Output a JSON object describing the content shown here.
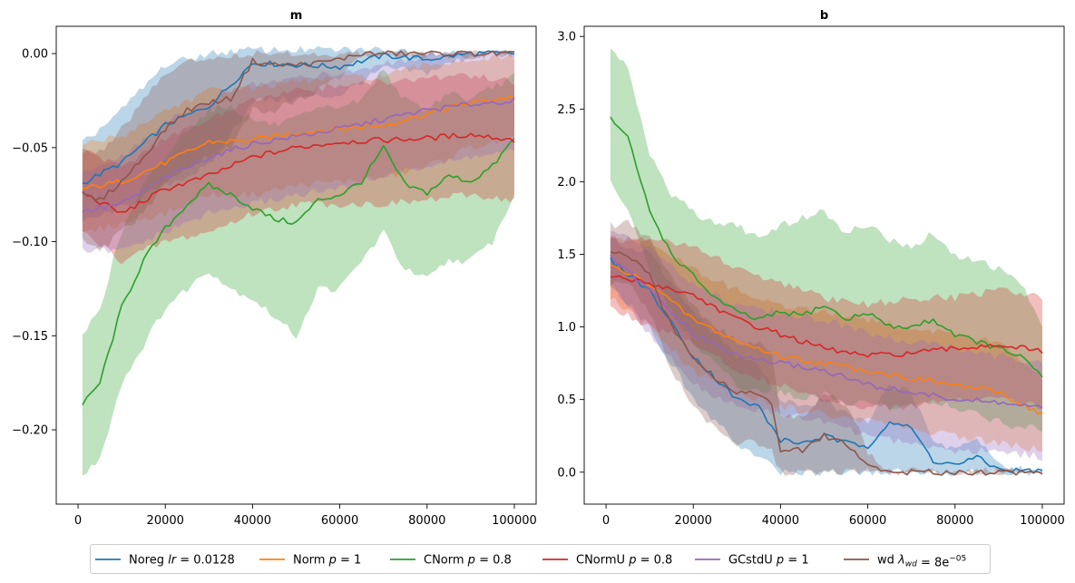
{
  "legend": {
    "placement": "bottom-center",
    "entries": [
      {
        "prefix": "Noreg ",
        "math": "lr",
        "mathSub": "",
        "mathSup": "",
        "suffix": " = 0.0128"
      },
      {
        "prefix": "Norm ",
        "math": "p",
        "mathSub": "",
        "mathSup": "",
        "suffix": " = 1"
      },
      {
        "prefix": "CNorm ",
        "math": "p",
        "mathSub": "",
        "mathSup": "",
        "suffix": " = 0.8"
      },
      {
        "prefix": "CNormU ",
        "math": "p",
        "mathSub": "",
        "mathSup": "",
        "suffix": " = 0.8"
      },
      {
        "prefix": "GCstdU ",
        "math": "p",
        "mathSub": "",
        "mathSup": "",
        "suffix": " = 1"
      },
      {
        "prefix": "wd ",
        "math": "λ",
        "mathSub": "wd",
        "mathSup": "−05",
        "suffix": " = 8e"
      }
    ]
  },
  "colors": [
    "#1f77b4",
    "#ff7f0e",
    "#2ca02c",
    "#d62728",
    "#9467bd",
    "#8c564b"
  ],
  "chart_data": [
    {
      "type": "line",
      "title": "m",
      "xlabel": "",
      "ylabel": "",
      "grid": false,
      "xlim": [
        -5000,
        105000
      ],
      "ylim": [
        -0.2395,
        0.0145
      ],
      "xticks": [
        0,
        20000,
        40000,
        60000,
        80000,
        100000
      ],
      "xtick_labels": [
        "0",
        "20000",
        "40000",
        "60000",
        "80000",
        "100000"
      ],
      "yticks": [
        -0.2,
        -0.15,
        -0.1,
        -0.05,
        0.0
      ],
      "ytick_labels": [
        "−0.20",
        "−0.15",
        "−0.10",
        "−0.05",
        "0.00"
      ],
      "series": [
        {
          "name": "Noreg lr = 0.0128",
          "x": [
            1000,
            10000,
            20000,
            30000,
            40000,
            50000,
            60000,
            70000,
            80000,
            90000,
            100000
          ],
          "mean": [
            -0.069,
            -0.058,
            -0.038,
            -0.028,
            -0.005,
            -0.006,
            -0.007,
            -0.001,
            -0.003,
            0.0,
            0.0
          ],
          "lower": [
            -0.09,
            -0.082,
            -0.07,
            -0.06,
            -0.025,
            -0.024,
            -0.022,
            -0.008,
            -0.01,
            -0.001,
            -0.001
          ],
          "upper": [
            -0.048,
            -0.03,
            -0.006,
            0.0,
            0.002,
            0.002,
            0.002,
            0.002,
            0.001,
            0.0005,
            0.0005
          ]
        },
        {
          "name": "Norm p = 1",
          "x": [
            1000,
            10000,
            20000,
            30000,
            40000,
            50000,
            60000,
            70000,
            80000,
            90000,
            100000
          ],
          "mean": [
            -0.072,
            -0.068,
            -0.058,
            -0.047,
            -0.046,
            -0.042,
            -0.04,
            -0.038,
            -0.032,
            -0.026,
            -0.023
          ],
          "lower": [
            -0.096,
            -0.09,
            -0.085,
            -0.075,
            -0.075,
            -0.07,
            -0.068,
            -0.066,
            -0.06,
            -0.05,
            -0.045
          ],
          "upper": [
            -0.048,
            -0.044,
            -0.03,
            -0.02,
            -0.018,
            -0.015,
            -0.013,
            -0.012,
            -0.006,
            -0.003,
            -0.002
          ]
        },
        {
          "name": "CNorm p = 0.8",
          "x": [
            1000,
            5000,
            10000,
            15000,
            20000,
            25000,
            30000,
            35000,
            40000,
            45000,
            50000,
            55000,
            60000,
            65000,
            70000,
            75000,
            80000,
            85000,
            90000,
            95000,
            100000
          ],
          "mean": [
            -0.187,
            -0.175,
            -0.135,
            -0.11,
            -0.093,
            -0.08,
            -0.07,
            -0.075,
            -0.082,
            -0.088,
            -0.09,
            -0.078,
            -0.075,
            -0.068,
            -0.05,
            -0.07,
            -0.074,
            -0.065,
            -0.068,
            -0.06,
            -0.045
          ],
          "lower": [
            -0.225,
            -0.215,
            -0.175,
            -0.155,
            -0.135,
            -0.125,
            -0.115,
            -0.125,
            -0.13,
            -0.14,
            -0.15,
            -0.125,
            -0.125,
            -0.11,
            -0.095,
            -0.115,
            -0.12,
            -0.11,
            -0.11,
            -0.1,
            -0.075
          ],
          "upper": [
            -0.15,
            -0.135,
            -0.095,
            -0.07,
            -0.055,
            -0.04,
            -0.03,
            -0.028,
            -0.035,
            -0.038,
            -0.035,
            -0.03,
            -0.028,
            -0.025,
            -0.008,
            -0.025,
            -0.03,
            -0.02,
            -0.025,
            -0.018,
            -0.012
          ]
        },
        {
          "name": "CNormU p = 0.8",
          "x": [
            1000,
            10000,
            20000,
            30000,
            40000,
            50000,
            60000,
            70000,
            80000,
            90000,
            100000
          ],
          "mean": [
            -0.074,
            -0.085,
            -0.072,
            -0.065,
            -0.055,
            -0.05,
            -0.047,
            -0.046,
            -0.045,
            -0.043,
            -0.046
          ],
          "lower": [
            -0.095,
            -0.11,
            -0.1,
            -0.095,
            -0.085,
            -0.08,
            -0.08,
            -0.08,
            -0.078,
            -0.075,
            -0.078
          ],
          "upper": [
            -0.052,
            -0.06,
            -0.045,
            -0.035,
            -0.025,
            -0.02,
            -0.017,
            -0.015,
            -0.013,
            -0.012,
            -0.015
          ]
        },
        {
          "name": "GCstdU p = 1",
          "x": [
            1000,
            10000,
            20000,
            30000,
            40000,
            50000,
            60000,
            70000,
            80000,
            90000,
            100000
          ],
          "mean": [
            -0.084,
            -0.08,
            -0.066,
            -0.055,
            -0.048,
            -0.044,
            -0.04,
            -0.035,
            -0.03,
            -0.027,
            -0.025
          ],
          "lower": [
            -0.105,
            -0.105,
            -0.095,
            -0.085,
            -0.08,
            -0.075,
            -0.072,
            -0.065,
            -0.06,
            -0.055,
            -0.052
          ],
          "upper": [
            -0.063,
            -0.055,
            -0.037,
            -0.025,
            -0.016,
            -0.013,
            -0.01,
            -0.006,
            -0.002,
            0.0,
            0.0
          ]
        },
        {
          "name": "wd λwd = 8e−05",
          "x": [
            1000,
            5000,
            10000,
            15000,
            20000,
            25000,
            30000,
            35000,
            40000,
            45000,
            50000,
            55000,
            60000,
            65000,
            70000,
            80000,
            90000,
            100000
          ],
          "mean": [
            -0.075,
            -0.078,
            -0.068,
            -0.055,
            -0.04,
            -0.03,
            -0.026,
            -0.024,
            -0.004,
            -0.006,
            -0.006,
            -0.005,
            -0.003,
            0.0,
            0.0,
            0.0,
            0.0,
            0.0
          ],
          "lower": [
            -0.1,
            -0.105,
            -0.095,
            -0.085,
            -0.07,
            -0.06,
            -0.055,
            -0.05,
            -0.03,
            -0.03,
            -0.025,
            -0.02,
            -0.012,
            -0.002,
            -0.001,
            -0.001,
            -0.001,
            -0.001
          ],
          "upper": [
            -0.05,
            -0.052,
            -0.04,
            -0.025,
            -0.01,
            -0.004,
            -0.002,
            -0.001,
            0.0,
            0.0,
            0.0,
            0.0,
            0.0,
            0.0,
            0.0,
            0.0,
            0.0,
            0.0
          ]
        }
      ]
    },
    {
      "type": "line",
      "title": "b",
      "xlabel": "",
      "ylabel": "",
      "grid": false,
      "xlim": [
        -5000,
        105000
      ],
      "ylim": [
        -0.22,
        3.07
      ],
      "xticks": [
        0,
        20000,
        40000,
        60000,
        80000,
        100000
      ],
      "xtick_labels": [
        "0",
        "20000",
        "40000",
        "60000",
        "80000",
        "100000"
      ],
      "yticks": [
        0.0,
        0.5,
        1.0,
        1.5,
        2.0,
        2.5,
        3.0
      ],
      "ytick_labels": [
        "0.0",
        "0.5",
        "1.0",
        "1.5",
        "2.0",
        "2.5",
        "3.0"
      ],
      "series": [
        {
          "name": "Noreg lr = 0.0128",
          "x": [
            1000,
            10000,
            20000,
            30000,
            35000,
            40000,
            45000,
            50000,
            55000,
            60000,
            65000,
            70000,
            75000,
            80000,
            85000,
            90000,
            95000,
            100000
          ],
          "mean": [
            1.46,
            1.25,
            0.8,
            0.5,
            0.45,
            0.22,
            0.2,
            0.25,
            0.2,
            0.18,
            0.35,
            0.3,
            0.08,
            0.05,
            0.1,
            0.02,
            0.01,
            0.01
          ],
          "lower": [
            1.3,
            1.0,
            0.5,
            0.2,
            0.1,
            0.0,
            0.0,
            0.0,
            0.0,
            0.0,
            0.0,
            0.0,
            0.0,
            0.0,
            0.0,
            0.0,
            0.0,
            0.0
          ],
          "upper": [
            1.6,
            1.5,
            1.1,
            0.8,
            0.75,
            0.5,
            0.45,
            0.5,
            0.4,
            0.35,
            0.6,
            0.55,
            0.2,
            0.15,
            0.22,
            0.05,
            0.02,
            0.02
          ]
        },
        {
          "name": "Norm p = 1",
          "x": [
            1000,
            10000,
            20000,
            30000,
            40000,
            50000,
            60000,
            70000,
            80000,
            90000,
            100000
          ],
          "mean": [
            1.42,
            1.3,
            1.05,
            0.9,
            0.8,
            0.75,
            0.7,
            0.65,
            0.6,
            0.55,
            0.4
          ],
          "lower": [
            1.2,
            1.0,
            0.7,
            0.55,
            0.45,
            0.4,
            0.35,
            0.3,
            0.25,
            0.2,
            0.15
          ],
          "upper": [
            1.6,
            1.6,
            1.4,
            1.25,
            1.15,
            1.1,
            1.05,
            1.0,
            0.95,
            0.9,
            0.65
          ]
        },
        {
          "name": "CNorm p = 0.8",
          "x": [
            1000,
            5000,
            10000,
            15000,
            20000,
            25000,
            30000,
            35000,
            40000,
            45000,
            50000,
            55000,
            60000,
            65000,
            70000,
            75000,
            80000,
            85000,
            90000,
            95000,
            100000
          ],
          "mean": [
            2.44,
            2.3,
            1.8,
            1.5,
            1.35,
            1.2,
            1.1,
            1.05,
            1.1,
            1.08,
            1.15,
            1.05,
            1.1,
            1.0,
            1.0,
            1.05,
            0.95,
            0.9,
            0.85,
            0.8,
            0.65
          ],
          "lower": [
            2.0,
            1.8,
            1.4,
            1.1,
            0.9,
            0.75,
            0.6,
            0.55,
            0.55,
            0.5,
            0.55,
            0.45,
            0.5,
            0.45,
            0.45,
            0.5,
            0.45,
            0.4,
            0.35,
            0.3,
            0.3
          ],
          "upper": [
            2.9,
            2.8,
            2.2,
            1.9,
            1.8,
            1.7,
            1.7,
            1.6,
            1.7,
            1.75,
            1.8,
            1.65,
            1.7,
            1.6,
            1.55,
            1.65,
            1.5,
            1.45,
            1.4,
            1.3,
            1.0
          ]
        },
        {
          "name": "CNormU p = 0.8",
          "x": [
            1000,
            10000,
            20000,
            30000,
            40000,
            50000,
            60000,
            70000,
            80000,
            90000,
            100000
          ],
          "mean": [
            1.35,
            1.3,
            1.22,
            1.05,
            0.95,
            0.85,
            0.8,
            0.82,
            0.85,
            0.88,
            0.83
          ],
          "lower": [
            1.15,
            1.0,
            0.9,
            0.7,
            0.6,
            0.5,
            0.45,
            0.45,
            0.5,
            0.5,
            0.45
          ],
          "upper": [
            1.6,
            1.6,
            1.55,
            1.4,
            1.3,
            1.2,
            1.15,
            1.2,
            1.2,
            1.25,
            1.2
          ]
        },
        {
          "name": "GCstdU p = 1",
          "x": [
            1000,
            10000,
            20000,
            30000,
            40000,
            50000,
            60000,
            70000,
            80000,
            90000,
            100000
          ],
          "mean": [
            1.48,
            1.25,
            0.95,
            0.8,
            0.75,
            0.7,
            0.6,
            0.55,
            0.5,
            0.48,
            0.44
          ],
          "lower": [
            1.3,
            0.95,
            0.6,
            0.45,
            0.4,
            0.35,
            0.25,
            0.2,
            0.15,
            0.15,
            0.1
          ],
          "upper": [
            1.65,
            1.55,
            1.3,
            1.15,
            1.1,
            1.05,
            0.95,
            0.9,
            0.85,
            0.8,
            0.75
          ]
        },
        {
          "name": "wd λwd = 8e−05",
          "x": [
            1000,
            5000,
            10000,
            15000,
            20000,
            25000,
            30000,
            35000,
            38000,
            40000,
            45000,
            50000,
            55000,
            58000,
            60000,
            65000,
            70000,
            80000,
            90000,
            100000
          ],
          "mean": [
            1.5,
            1.5,
            1.35,
            1.0,
            0.8,
            0.65,
            0.55,
            0.55,
            0.45,
            0.15,
            0.15,
            0.25,
            0.2,
            0.1,
            0.05,
            0.0,
            0.0,
            0.0,
            0.0,
            0.0
          ],
          "lower": [
            1.3,
            1.3,
            1.1,
            0.7,
            0.45,
            0.3,
            0.2,
            0.2,
            0.15,
            0.0,
            0.0,
            0.0,
            0.0,
            0.0,
            0.0,
            0.0,
            0.0,
            0.0,
            0.0,
            0.0
          ],
          "upper": [
            1.7,
            1.72,
            1.6,
            1.35,
            1.15,
            1.0,
            0.9,
            0.9,
            0.8,
            0.4,
            0.38,
            0.55,
            0.45,
            0.3,
            0.12,
            0.01,
            0.01,
            0.01,
            0.01,
            0.01
          ]
        }
      ]
    }
  ]
}
